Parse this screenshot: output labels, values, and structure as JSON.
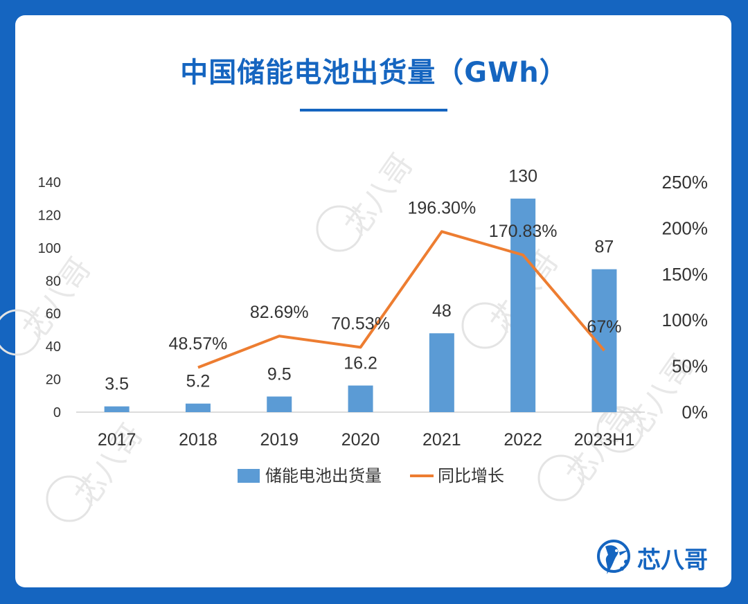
{
  "page": {
    "title": "中国储能电池出货量（GWh）",
    "brand_name": "芯八哥",
    "watermark_text": "芯八哥"
  },
  "chart_data": {
    "type": "bar",
    "categories": [
      "2017",
      "2018",
      "2019",
      "2020",
      "2021",
      "2022",
      "2023H1"
    ],
    "series": [
      {
        "name": "储能电池出货量",
        "kind": "bar",
        "axis": "left",
        "color": "#5b9bd5",
        "values": [
          3.5,
          5.2,
          9.5,
          16.2,
          48,
          130,
          87
        ],
        "labels": [
          "3.5",
          "5.2",
          "9.5",
          "16.2",
          "48",
          "130",
          "87"
        ]
      },
      {
        "name": "同比增长",
        "kind": "line",
        "axis": "right",
        "color": "#ed7d31",
        "values": [
          null,
          48.57,
          82.69,
          70.53,
          196.3,
          170.83,
          67
        ],
        "labels": [
          "",
          "48.57%",
          "82.69%",
          "70.53%",
          "196.30%",
          "170.83%",
          "67%"
        ]
      }
    ],
    "left_axis": {
      "ylim": [
        0,
        140
      ],
      "ticks": [
        "0",
        "20",
        "40",
        "60",
        "80",
        "100",
        "120",
        "140"
      ]
    },
    "right_axis": {
      "ylim": [
        0,
        250
      ],
      "ticks": [
        "0%",
        "50%",
        "100%",
        "150%",
        "200%",
        "250%"
      ]
    },
    "legend_position": "bottom",
    "grid": false
  }
}
